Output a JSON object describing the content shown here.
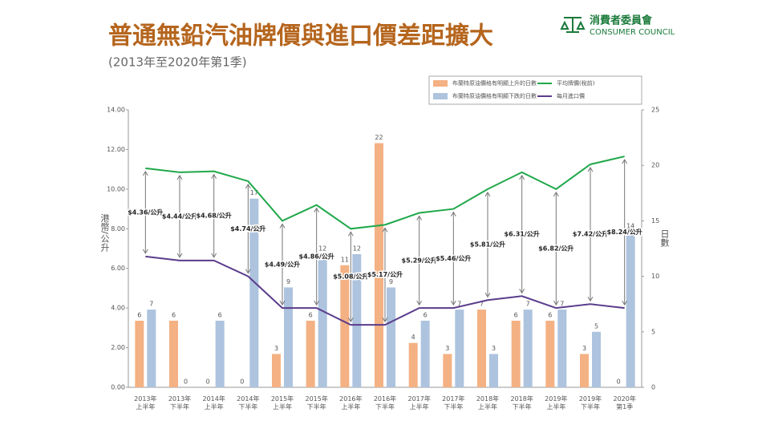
{
  "logo": {
    "name": "消費者委員會",
    "english": "CONSUMER COUNCIL"
  },
  "chart_data": {
    "type": "bar",
    "title": "普通無鉛汽油牌價與進口價差距擴大",
    "subtitle": "(2013年至2020年第1季)",
    "y_label": "港幣/公升",
    "y2_label": "日數",
    "categories": [
      "2013年\n上半年",
      "2013年\n下半年",
      "2014年\n上半年",
      "2014年\n下半年",
      "2015年\n上半年",
      "2015年\n下半年",
      "2016年\n上半年",
      "2016年\n下半年",
      "2017年\n上半年",
      "2017年\n下半年",
      "2018年\n上半年",
      "2018年\n下半年",
      "2019年\n上半年",
      "2019年\n下半年",
      "2020年\n第1季"
    ],
    "series": [
      {
        "name": "布蘭特原油價格有明顯上升的日數",
        "type": "bar",
        "axis": "y2",
        "color": "#f4b183",
        "values": [
          6,
          6,
          0,
          0,
          3,
          6,
          11,
          22,
          4,
          3,
          7,
          6,
          6,
          3,
          0
        ]
      },
      {
        "name": "布蘭特原油價格有明顯下跌的日數",
        "type": "bar",
        "axis": "y2",
        "color": "#adc3de",
        "values": [
          7,
          0,
          6,
          17,
          9,
          12,
          12,
          9,
          6,
          7,
          3,
          7,
          7,
          5,
          14
        ]
      },
      {
        "name": "平均牌價(稅前)",
        "type": "line",
        "color": "#1fa84a",
        "values": [
          11.05,
          10.85,
          10.9,
          10.4,
          8.4,
          9.2,
          8.0,
          8.2,
          8.8,
          9.0,
          10.0,
          10.85,
          10.0,
          11.25,
          11.65
        ]
      },
      {
        "name": "每月進口價",
        "type": "line",
        "color": "#5b3c8c",
        "values": [
          6.6,
          6.4,
          6.4,
          5.6,
          4.0,
          4.0,
          3.15,
          3.15,
          4.0,
          4.0,
          4.4,
          4.6,
          4.0,
          4.2,
          4.0
        ]
      }
    ],
    "annotations": [
      "$4.36/公升",
      "$4.44/公升",
      "$4.68/公升",
      "$4.74/公升",
      "$4.49/公升",
      "$4.86/公升",
      "$5.08/公升",
      "$5.17/公升",
      "$5.29/公升",
      "$5.46/公升",
      "$5.81/公升",
      "$6.31/公升",
      "$6.82/公升",
      "$7.42/公升",
      "$8.24/公升"
    ],
    "ylim": [
      0,
      14
    ],
    "yticks": [
      {
        "value": 0,
        "label": "0.00"
      },
      {
        "value": 2,
        "label": "2.00"
      },
      {
        "value": 4,
        "label": "4.00"
      },
      {
        "value": 6,
        "label": "6.00"
      },
      {
        "value": 8,
        "label": "8.00"
      },
      {
        "value": 10,
        "label": "10.00"
      },
      {
        "value": 12,
        "label": "12.00"
      },
      {
        "value": 14,
        "label": "14.00"
      }
    ],
    "y2lim": [
      0,
      25
    ],
    "y2ticks": [
      0,
      5,
      10,
      15,
      20,
      25
    ]
  }
}
